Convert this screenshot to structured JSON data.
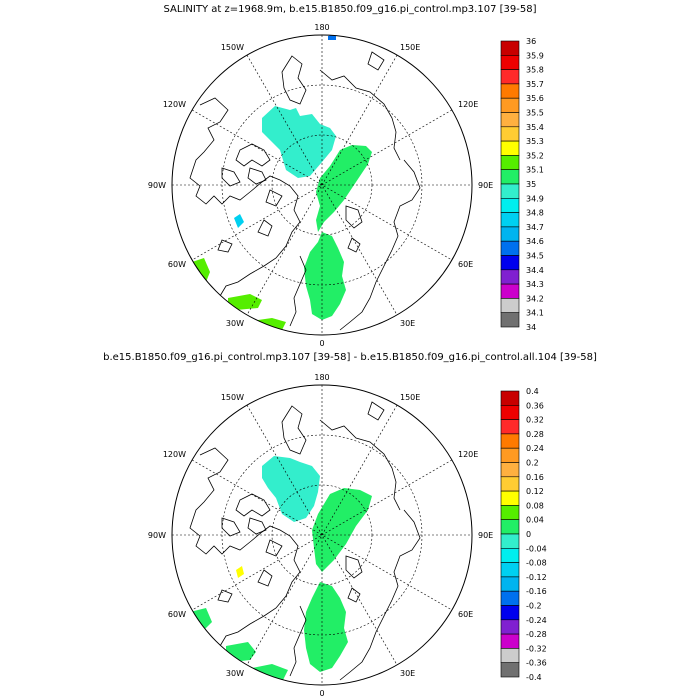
{
  "panels": [
    {
      "title": "SALINITY at z=1968.9m, b.e15.B1850.f09_g16.pi_control.mp3.107 [39-58]",
      "lon_labels": {
        "top": "180",
        "bottom": "0",
        "left": "90W",
        "right": "90E",
        "ul150": "150W",
        "ul120": "120W",
        "ur150": "150E",
        "ur120": "120E",
        "ll60": "60W",
        "ll30": "30W",
        "lr60": "60E",
        "lr30": "30E"
      },
      "colorbar": {
        "labels": [
          "36",
          "35.9",
          "35.8",
          "35.7",
          "35.6",
          "35.5",
          "35.4",
          "35.3",
          "35.2",
          "35.1",
          "35",
          "34.9",
          "34.8",
          "34.7",
          "34.6",
          "34.5",
          "34.4",
          "34.3",
          "34.2",
          "34.1",
          "34"
        ]
      }
    },
    {
      "title": "b.e15.B1850.f09_g16.pi_control.mp3.107 [39-58] - b.e15.B1850.f09_g16.pi_control.all.104 [39-58]",
      "lon_labels": {
        "top": "180",
        "bottom": "0",
        "left": "90W",
        "right": "90E",
        "ul150": "150W",
        "ul120": "120W",
        "ur150": "150E",
        "ur120": "120E",
        "ll60": "60W",
        "ll30": "30W",
        "lr60": "60E",
        "lr30": "30E"
      },
      "colorbar": {
        "labels": [
          "0.4",
          "0.36",
          "0.32",
          "0.28",
          "0.24",
          "0.2",
          "0.16",
          "0.12",
          "0.08",
          "0.04",
          "0",
          "-0.04",
          "-0.08",
          "-0.12",
          "-0.16",
          "-0.2",
          "-0.24",
          "-0.28",
          "-0.32",
          "-0.36",
          "-0.4"
        ]
      }
    }
  ],
  "colors": {
    "scale": [
      "#c80000",
      "#ee0000",
      "#ff2a2a",
      "#ff7a00",
      "#ff9a22",
      "#ffb040",
      "#ffcc33",
      "#ffff00",
      "#55ee00",
      "#22ee66",
      "#33eecc",
      "#00eeee",
      "#00d0f0",
      "#00b4f0",
      "#0070ee",
      "#0000ee",
      "#8020d0",
      "#cc00cc",
      "#cccccc",
      "#707070"
    ],
    "teal": "#33eecc",
    "green": "#22ee66",
    "lime": "#55ee00",
    "cyan": "#00d0f0",
    "blue": "#0070ee"
  }
}
